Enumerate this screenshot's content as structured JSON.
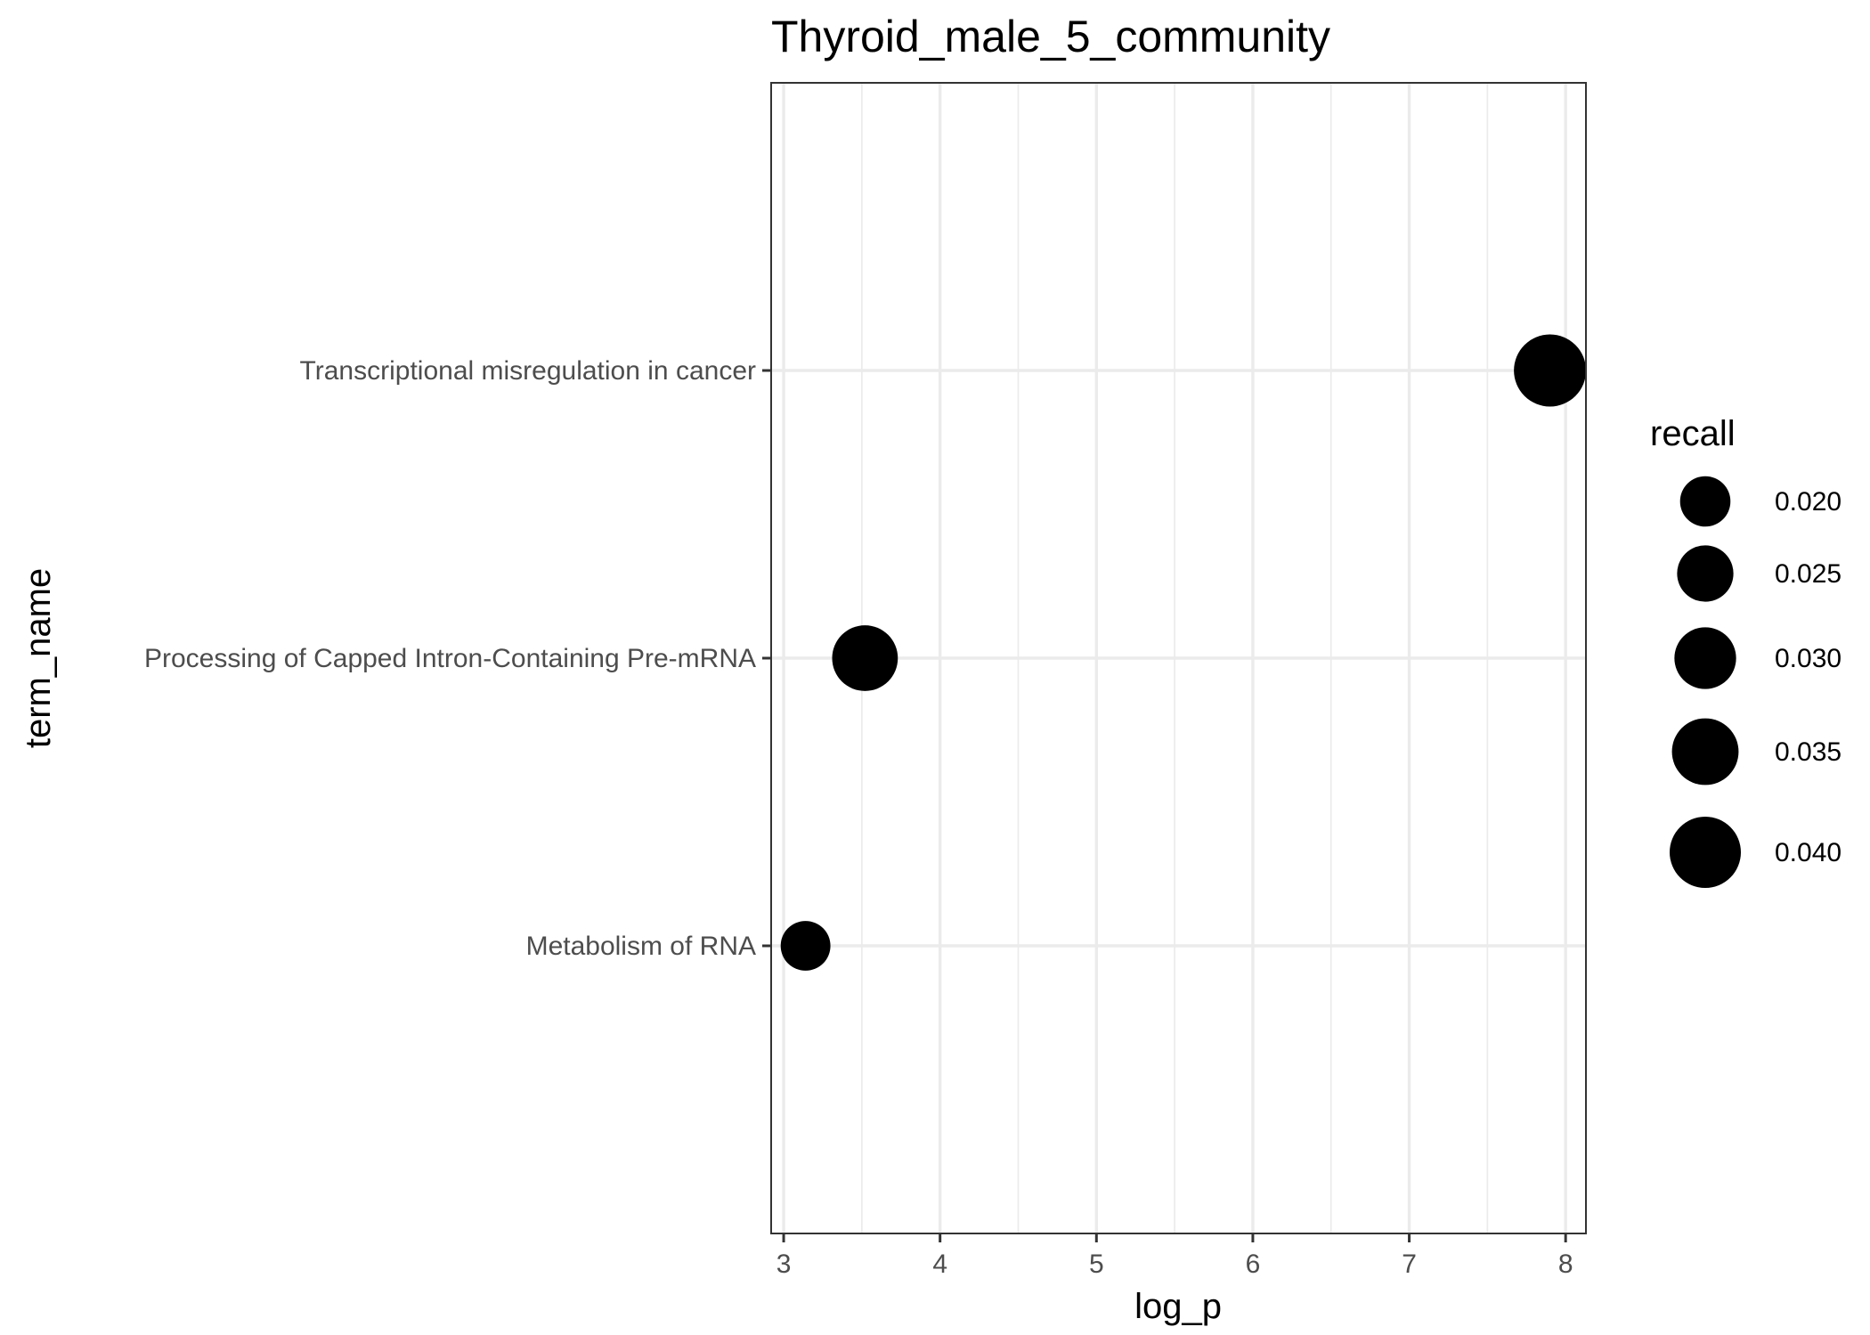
{
  "chart_data": {
    "type": "scatter",
    "title": "Thyroid_male_5_community",
    "xlabel": "log_p",
    "ylabel": "term_name",
    "xlim": [
      2.92,
      8.13
    ],
    "x_ticks": [
      "3",
      "4",
      "5",
      "6",
      "7",
      "8"
    ],
    "categories": [
      "Transcriptional misregulation in cancer",
      "Processing of Capped Intron-Containing Pre-mRNA",
      "Metabolism of RNA"
    ],
    "points": [
      {
        "term": "Transcriptional misregulation in cancer",
        "x": 7.9,
        "size": 0.041
      },
      {
        "term": "Processing of Capped Intron-Containing Pre-mRNA",
        "x": 3.52,
        "size": 0.034
      },
      {
        "term": "Metabolism of RNA",
        "x": 3.14,
        "size": 0.0195
      }
    ],
    "size_legend": {
      "title": "recall",
      "entries": [
        {
          "label": "0.020",
          "value": 0.02
        },
        {
          "label": "0.025",
          "value": 0.025
        },
        {
          "label": "0.030",
          "value": 0.03
        },
        {
          "label": "0.035",
          "value": 0.035
        },
        {
          "label": "0.040",
          "value": 0.04
        }
      ]
    },
    "grid": true,
    "legend_position": "right",
    "point_color": "#000000"
  }
}
